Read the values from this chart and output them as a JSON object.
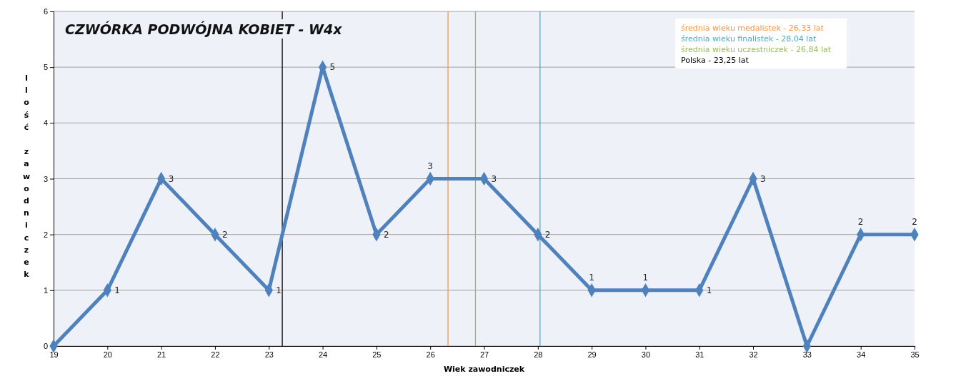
{
  "chart_data": {
    "type": "line",
    "title": "CZWÓRKA PODWÓJNA KOBIET - W4x",
    "xlabel": "Wiek zawodniczek",
    "ylabel": "Ilość zawodniczek",
    "x": [
      19,
      20,
      21,
      22,
      23,
      24,
      25,
      26,
      27,
      28,
      29,
      30,
      31,
      32,
      33,
      34,
      35
    ],
    "series": [
      {
        "color": "#4f81bd",
        "values": [
          0,
          1,
          3,
          2,
          1,
          5,
          2,
          3,
          3,
          2,
          1,
          1,
          1,
          3,
          0,
          2,
          2
        ],
        "value_labels": [
          null,
          "1",
          "3",
          "2",
          "1",
          "5",
          "2",
          "3",
          "3",
          "2",
          "1",
          "1",
          "1",
          "3",
          null,
          "2",
          "2"
        ]
      }
    ],
    "xlim": [
      19,
      35
    ],
    "xticks": [
      19,
      20,
      21,
      22,
      23,
      24,
      25,
      26,
      27,
      28,
      29,
      30,
      31,
      32,
      33,
      34,
      35
    ],
    "ylim": [
      0,
      6
    ],
    "yticks": [
      0,
      1,
      2,
      3,
      4,
      5,
      6
    ],
    "grid": "y",
    "marker": "diamond",
    "line_style": "solid",
    "legend": "top right",
    "ref_lines": [
      {
        "axis": "x",
        "value": 26.33,
        "label": "średnia wieku medalistek - 26,33 lat",
        "color": "#f79646"
      },
      {
        "axis": "x",
        "value": 28.04,
        "label": "średnia wieku finalistek - 28,04 lat",
        "color": "#4bacc6"
      },
      {
        "axis": "x",
        "value": 26.84,
        "label": "średnia wieku uczestniczek - 26,84 lat",
        "color": "#9bbb59"
      },
      {
        "axis": "x",
        "value": 23.25,
        "label": "Polska - 23,25 lat",
        "color": "#000000"
      }
    ]
  }
}
